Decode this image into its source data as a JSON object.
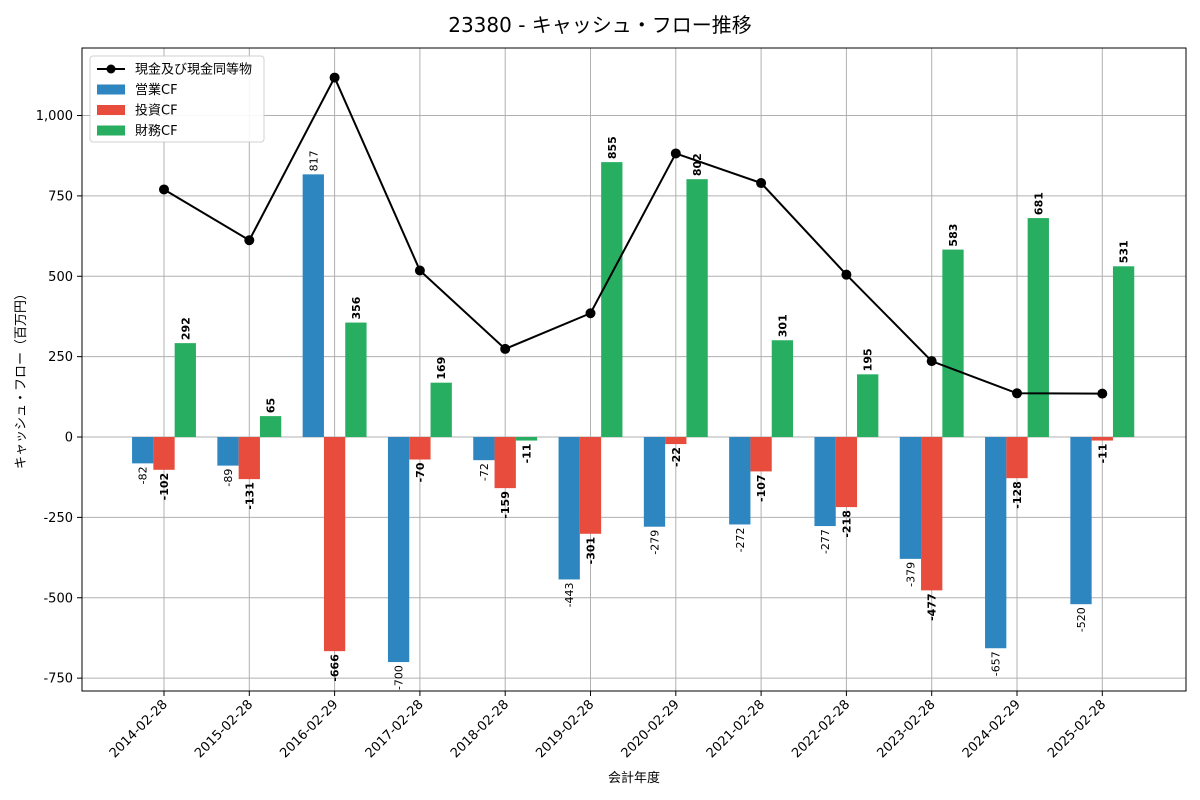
{
  "chart_data": {
    "type": "bar",
    "title": "23380 - キャッシュ・フロー推移",
    "xlabel": "会計年度",
    "ylabel": "キャッシュ・フロー（百万円）",
    "ylim": [
      -790,
      1210
    ],
    "yticks": [
      -750,
      -500,
      -250,
      0,
      250,
      500,
      750,
      1000
    ],
    "ytick_labels": [
      "-750",
      "-500",
      "-250",
      "0",
      "250",
      "500",
      "750",
      "1,000"
    ],
    "grid": true,
    "legend_position": "top-left",
    "categories": [
      "2014-02-28",
      "2015-02-28",
      "2016-02-29",
      "2017-02-28",
      "2018-02-28",
      "2019-02-28",
      "2020-02-29",
      "2021-02-28",
      "2022-02-28",
      "2023-02-28",
      "2024-02-29",
      "2025-02-28"
    ],
    "series": [
      {
        "name": "営業CF",
        "kind": "bar",
        "color": "#2e86c1",
        "values": [
          -82,
          -89,
          817,
          -700,
          -72,
          -443,
          -279,
          -272,
          -277,
          -379,
          -657,
          -520
        ]
      },
      {
        "name": "投資CF",
        "kind": "bar",
        "color": "#e74c3c",
        "values": [
          -102,
          -131,
          -666,
          -70,
          -159,
          -301,
          -22,
          -107,
          -218,
          -477,
          -128,
          -11
        ]
      },
      {
        "name": "財務CF",
        "kind": "bar",
        "color": "#27ae60",
        "values": [
          292,
          65,
          356,
          169,
          -11,
          855,
          802,
          301,
          195,
          583,
          681,
          531
        ]
      },
      {
        "name": "現金及び現金同等物",
        "kind": "line",
        "color": "#000000",
        "values": [
          770,
          612,
          1118,
          518,
          274,
          385,
          882,
          790,
          505,
          236,
          136,
          135
        ]
      }
    ]
  }
}
